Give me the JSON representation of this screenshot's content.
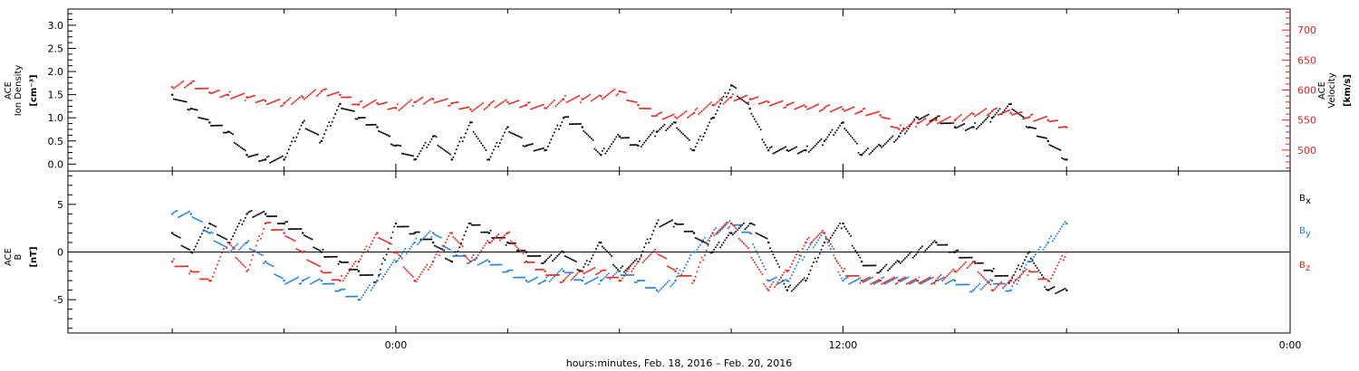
{
  "chart_data": [
    {
      "type": "scatter",
      "panel": "ion-density-velocity",
      "ylabel_lines": [
        "ACE",
        "Ion Density"
      ],
      "yunit": "[cm⁻³]",
      "ylim": [
        -0.15,
        3.35
      ],
      "yticks": [
        "0.0",
        "0.5",
        "1.0",
        "1.5",
        "2.0",
        "2.5",
        "3.0"
      ],
      "y2label_lines": [
        "ACE",
        "Velocity"
      ],
      "y2unit": "[km/s]",
      "y2lim": [
        465,
        735
      ],
      "y2ticks": [
        "500",
        "550",
        "600",
        "650",
        "700"
      ],
      "series": [
        {
          "color": "#000000",
          "axis": "left",
          "x_hours": [
            -6,
            -5.5,
            -5,
            -4.5,
            -4,
            -3.5,
            -3,
            -2.5,
            -2,
            -1.5,
            -1,
            -0.5,
            0,
            0.5,
            1,
            1.5,
            2,
            2.5,
            3,
            3.5,
            4,
            4.5,
            5,
            5.5,
            6,
            6.5,
            7,
            7.5,
            8,
            8.5,
            9,
            9.5,
            10,
            10.5,
            11,
            11.5,
            12,
            12.5,
            13,
            13.5,
            14,
            14.5,
            15,
            15.5,
            16,
            16.5,
            17,
            17.5,
            18
          ],
          "values": [
            1.5,
            1.2,
            0.9,
            0.7,
            0.2,
            0.1,
            0.1,
            0.9,
            0.5,
            1.3,
            1.0,
            0.8,
            0.4,
            0.1,
            0.6,
            0.1,
            0.9,
            0.1,
            0.8,
            0.4,
            0.3,
            1.0,
            0.8,
            0.2,
            0.6,
            0.4,
            0.7,
            0.9,
            0.3,
            1.0,
            1.7,
            1.2,
            0.3,
            0.3,
            0.3,
            0.5,
            0.9,
            0.2,
            0.4,
            0.6,
            1.0,
            1.0,
            0.8,
            0.8,
            1.0,
            1.3,
            0.8,
            0.5,
            0.1
          ]
        },
        {
          "color": "#e8231e",
          "axis": "right",
          "x_hours": [
            -6,
            -5.5,
            -5,
            -4.5,
            -4,
            -3.5,
            -3,
            -2.5,
            -2,
            -1.5,
            -1,
            -0.5,
            0,
            0.5,
            1,
            1.5,
            2,
            2.5,
            3,
            3.5,
            4,
            4.5,
            5,
            5.5,
            6,
            6.5,
            7,
            7.5,
            8,
            8.5,
            9,
            9.5,
            10,
            10.5,
            11,
            11.5,
            12,
            12.5,
            13,
            13.5,
            14,
            14.5,
            15,
            15.5,
            16,
            16.5,
            17,
            17.5,
            18
          ],
          "values": [
            605,
            612,
            596,
            592,
            588,
            582,
            578,
            588,
            598,
            592,
            576,
            578,
            570,
            580,
            585,
            578,
            568,
            575,
            580,
            575,
            570,
            585,
            585,
            590,
            598,
            575,
            558,
            555,
            562,
            575,
            588,
            585,
            580,
            575,
            572,
            570,
            568,
            565,
            558,
            535,
            545,
            550,
            550,
            560,
            565,
            562,
            555,
            550,
            538
          ]
        }
      ]
    },
    {
      "type": "scatter",
      "panel": "magnetic-field",
      "ylabel_lines": [
        "ACE",
        "B"
      ],
      "yunit": "[nT]",
      "ylim": [
        -8.5,
        8.5
      ],
      "yticks": [
        "-5",
        "0",
        "5"
      ],
      "legend_position": "right",
      "series": [
        {
          "name": "B",
          "subscript": "x",
          "color": "#000000",
          "x_hours": [
            -6,
            -5.5,
            -5,
            -4.5,
            -4,
            -3.5,
            -3,
            -2.5,
            -2,
            -1.5,
            -1,
            -0.5,
            0,
            0.5,
            1,
            1.5,
            2,
            2.5,
            3,
            3.5,
            4,
            4.5,
            5,
            5.5,
            6,
            6.5,
            7,
            7.5,
            8,
            8.5,
            9,
            9.5,
            10,
            10.5,
            11,
            11.5,
            12,
            12.5,
            13,
            13.5,
            14,
            14.5,
            15,
            15.5,
            16,
            16.5,
            17,
            17.5,
            18
          ],
          "values": [
            2,
            0,
            3,
            1,
            4,
            4,
            3,
            2,
            0,
            -1,
            -2,
            -3,
            3,
            2,
            1,
            -1,
            3,
            2,
            1,
            0,
            -1,
            0,
            -2,
            1,
            -2,
            -1,
            3,
            3,
            2,
            0,
            2,
            3,
            1,
            -4,
            -3,
            1,
            3,
            -1,
            -2,
            -1,
            0,
            1,
            0,
            -1,
            -2,
            -3,
            0,
            -4,
            -4
          ]
        },
        {
          "name": "B",
          "subscript": "y",
          "color": "#1e7fd6",
          "x_hours": [
            -6,
            -5.5,
            -5,
            -4.5,
            -4,
            -3.5,
            -3,
            -2.5,
            -2,
            -1.5,
            -1,
            -0.5,
            0,
            0.5,
            1,
            1.5,
            2,
            2.5,
            3,
            3.5,
            4,
            4.5,
            5,
            5.5,
            6,
            6.5,
            7,
            7.5,
            8,
            8.5,
            9,
            9.5,
            10,
            10.5,
            11,
            11.5,
            12,
            12.5,
            13,
            13.5,
            14,
            14.5,
            15,
            15.5,
            16,
            16.5,
            17,
            17.5,
            18
          ],
          "values": [
            4,
            4,
            2,
            0,
            1,
            -1,
            -3,
            -3,
            -3,
            -4,
            -5,
            -3,
            -1,
            1,
            2,
            0,
            -1,
            -1,
            -2,
            -3,
            -3,
            -2,
            -3,
            -3,
            -2,
            -3,
            -4,
            -3,
            0,
            2,
            3,
            2,
            -3,
            -3,
            0,
            2,
            -3,
            -3,
            -3,
            -3,
            -3,
            -3,
            -3,
            -4,
            -3,
            -4,
            -1,
            1,
            3
          ]
        },
        {
          "name": "B",
          "subscript": "z",
          "color": "#e8231e",
          "x_hours": [
            -6,
            -5.5,
            -5,
            -4.5,
            -4,
            -3.5,
            -3,
            -2.5,
            -2,
            -1.5,
            -1,
            -0.5,
            0,
            0.5,
            1,
            1.5,
            2,
            2.5,
            3,
            3.5,
            4,
            4.5,
            5,
            5.5,
            6,
            6.5,
            7,
            7.5,
            8,
            8.5,
            9,
            9.5,
            10,
            10.5,
            11,
            11.5,
            12,
            12.5,
            13,
            13.5,
            14,
            14.5,
            15,
            15.5,
            16,
            16.5,
            17,
            17.5,
            18
          ],
          "values": [
            -1,
            -2,
            -3,
            1,
            -2,
            3,
            2,
            0,
            -2,
            -3,
            -1,
            2,
            0,
            -3,
            -1,
            2,
            -1,
            1,
            2,
            -1,
            -2,
            -3,
            -2,
            -2,
            -3,
            -1,
            0,
            -2,
            -3,
            2,
            3,
            0,
            -4,
            -2,
            1,
            2,
            -2,
            -3,
            -3,
            -3,
            -3,
            -3,
            -2,
            -1,
            -4,
            -3,
            -2,
            -3,
            0
          ]
        }
      ]
    }
  ],
  "xaxis": {
    "tick_labels": [
      "0:00",
      "12:00",
      "0:00"
    ],
    "xlabel": "hours:minutes, Feb. 18, 2016 – Feb. 20, 2016"
  }
}
